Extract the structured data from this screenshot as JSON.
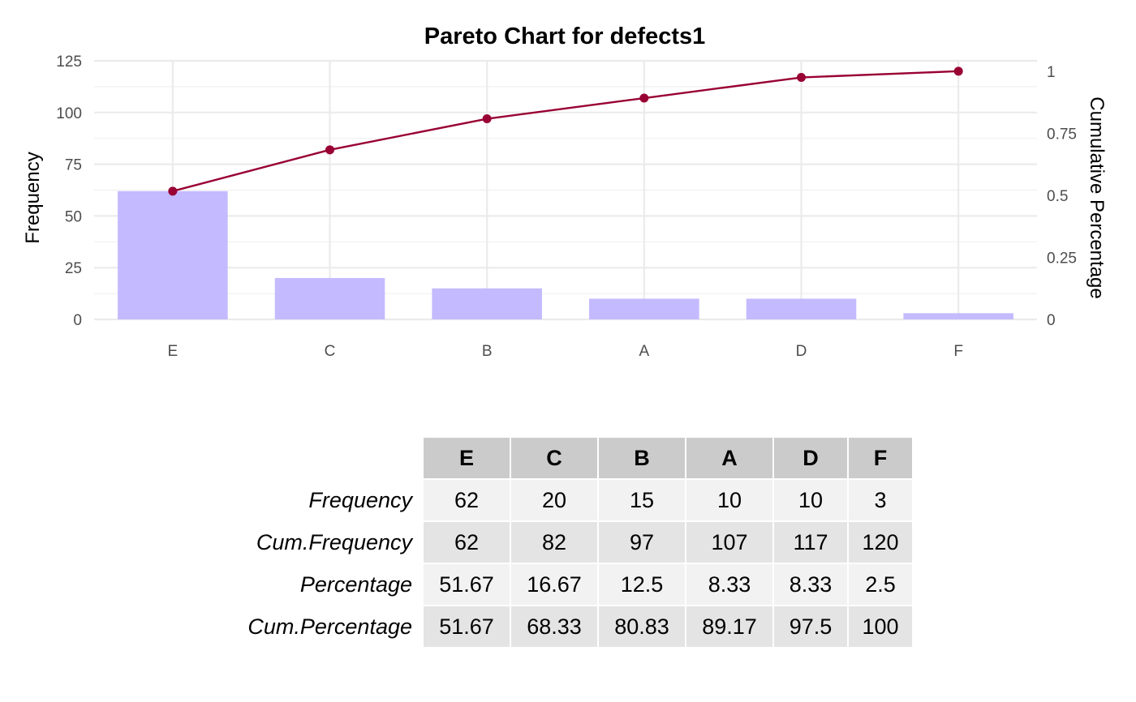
{
  "chart_data": {
    "type": "bar",
    "title": "Pareto Chart for defects1",
    "ylabel": "Frequency",
    "y2label": "Cumulative Percentage",
    "categories": [
      "E",
      "C",
      "B",
      "A",
      "D",
      "F"
    ],
    "values": [
      62,
      20,
      15,
      10,
      10,
      3
    ],
    "cumulative": [
      0.5167,
      0.6833,
      0.8083,
      0.8917,
      0.975,
      1.0
    ],
    "ylim": [
      0,
      125
    ],
    "y2lim": [
      0,
      1.042
    ],
    "yticks": [
      0,
      25,
      50,
      75,
      100,
      125
    ],
    "ytick_labels": [
      "0",
      "25",
      "50",
      "75",
      "100",
      "125"
    ],
    "y2ticks": [
      0,
      0.25,
      0.5,
      0.75,
      1
    ],
    "y2tick_labels": [
      "0",
      "0.25",
      "0.5",
      "0.75",
      "1"
    ],
    "grid": true,
    "bar_color": "#c4baff",
    "line_color": "#990033",
    "table": {
      "columns": [
        "E",
        "C",
        "B",
        "A",
        "D",
        "F"
      ],
      "rows": [
        {
          "label": "Frequency",
          "values": [
            "62",
            "20",
            "15",
            "10",
            "10",
            "3"
          ]
        },
        {
          "label": "Cum.Frequency",
          "values": [
            "62",
            "82",
            "97",
            "107",
            "117",
            "120"
          ]
        },
        {
          "label": "Percentage",
          "values": [
            "51.67",
            "16.67",
            "12.5",
            "8.33",
            "8.33",
            "2.5"
          ]
        },
        {
          "label": "Cum.Percentage",
          "values": [
            "51.67",
            "68.33",
            "80.83",
            "89.17",
            "97.5",
            "100"
          ]
        }
      ]
    }
  }
}
